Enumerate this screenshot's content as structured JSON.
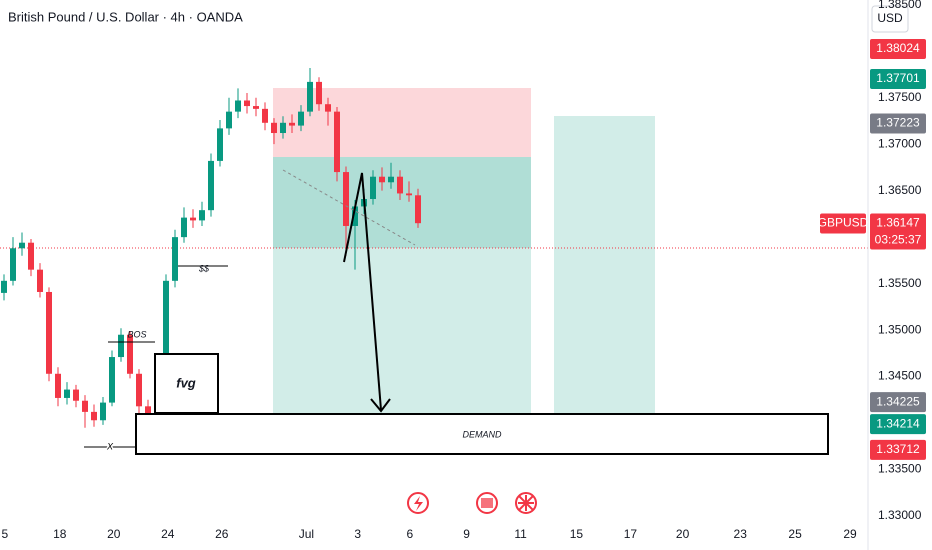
{
  "header": {
    "title": "British Pound / U.S. Dollar · 4h · OANDA",
    "currency": "USD"
  },
  "chart_data": {
    "type": "candlestick",
    "up_color": "#089981",
    "down_color": "#f23645",
    "open": [
      1.354,
      1.3553,
      1.3588,
      1.3594,
      1.3565,
      1.3541,
      1.3453,
      1.3427,
      1.3436,
      1.3424,
      1.3412,
      1.3403,
      1.3422,
      1.3471,
      1.3495,
      1.3453,
      1.3418,
      1.3398,
      1.3453,
      1.3553,
      1.36,
      1.3621,
      1.3618,
      1.3629,
      1.3682,
      1.3717,
      1.3735,
      1.3747,
      1.3741,
      1.3738,
      1.3723,
      1.3712,
      1.3723,
      1.372,
      1.3735,
      1.3767,
      1.3743,
      1.3735,
      1.367,
      1.3612,
      1.3633,
      1.3641,
      1.3665,
      1.3659,
      1.3665,
      1.3647,
      1.3645
    ],
    "high": [
      1.356,
      1.36,
      1.3605,
      1.3598,
      1.3572,
      1.3546,
      1.346,
      1.3444,
      1.3441,
      1.343,
      1.342,
      1.3428,
      1.3478,
      1.3502,
      1.3499,
      1.3458,
      1.3425,
      1.346,
      1.356,
      1.3608,
      1.3632,
      1.363,
      1.3638,
      1.369,
      1.3726,
      1.375,
      1.376,
      1.3755,
      1.375,
      1.3745,
      1.3728,
      1.373,
      1.3732,
      1.3742,
      1.3782,
      1.3772,
      1.375,
      1.374,
      1.3676,
      1.364,
      1.3652,
      1.3672,
      1.3675,
      1.368,
      1.3672,
      1.366,
      1.3652
    ],
    "low": [
      1.3532,
      1.3548,
      1.358,
      1.3558,
      1.3535,
      1.3445,
      1.3418,
      1.342,
      1.3417,
      1.3395,
      1.3396,
      1.3398,
      1.3418,
      1.3466,
      1.3448,
      1.341,
      1.3382,
      1.3392,
      1.3448,
      1.3546,
      1.3594,
      1.361,
      1.3612,
      1.3622,
      1.3676,
      1.371,
      1.3728,
      1.3733,
      1.373,
      1.3715,
      1.37,
      1.3706,
      1.3712,
      1.3714,
      1.373,
      1.3736,
      1.372,
      1.366,
      1.358,
      1.3565,
      1.3625,
      1.3635,
      1.365,
      1.3652,
      1.364,
      1.3638,
      1.361
    ],
    "close": [
      1.3553,
      1.3588,
      1.3594,
      1.3565,
      1.3541,
      1.3453,
      1.3427,
      1.3436,
      1.3424,
      1.3412,
      1.3403,
      1.3422,
      1.3471,
      1.3495,
      1.3453,
      1.3418,
      1.3398,
      1.3453,
      1.3553,
      1.36,
      1.3621,
      1.3618,
      1.3629,
      1.3682,
      1.3717,
      1.3735,
      1.3747,
      1.3741,
      1.3738,
      1.3723,
      1.3712,
      1.3723,
      1.372,
      1.3735,
      1.3767,
      1.3743,
      1.3735,
      1.367,
      1.3612,
      1.3633,
      1.3641,
      1.3665,
      1.3659,
      1.3665,
      1.3647,
      1.3645,
      1.3615
    ],
    "xlim": [
      0,
      96
    ],
    "xticks": [
      {
        "value": 0.1,
        "label": "5"
      },
      {
        "value": 6.2,
        "label": "18"
      },
      {
        "value": 12.2,
        "label": "20"
      },
      {
        "value": 18.2,
        "label": "24"
      },
      {
        "value": 24.2,
        "label": "26"
      },
      {
        "value": 33.6,
        "label": "Jul"
      },
      {
        "value": 39.3,
        "label": "3"
      },
      {
        "value": 45.1,
        "label": "6"
      },
      {
        "value": 51.4,
        "label": "9"
      },
      {
        "value": 57.4,
        "label": "11"
      },
      {
        "value": 63.6,
        "label": "15"
      },
      {
        "value": 69.6,
        "label": "17"
      },
      {
        "value": 75.4,
        "label": "20"
      },
      {
        "value": 81.8,
        "label": "23"
      },
      {
        "value": 87.9,
        "label": "25"
      },
      {
        "value": 94,
        "label": "29"
      }
    ],
    "ylim": [
      1.33,
      1.38551
    ],
    "yticks": [
      {
        "value": 1.385,
        "label": "1.38500"
      },
      {
        "value": 1.375,
        "label": "1.37500"
      },
      {
        "value": 1.37,
        "label": "1.37000"
      },
      {
        "value": 1.365,
        "label": "1.36500"
      },
      {
        "value": 1.355,
        "label": "1.35500"
      },
      {
        "value": 1.35,
        "label": "1.35000"
      },
      {
        "value": 1.345,
        "label": "1.34500"
      },
      {
        "value": 1.335,
        "label": "1.33500"
      },
      {
        "value": 1.33,
        "label": "1.33000"
      }
    ],
    "price_labels": [
      {
        "value": 1.38024,
        "color": "#f23645"
      },
      {
        "value": 1.37701,
        "color": "#089981"
      },
      {
        "value": 1.37223,
        "color": "#787b86"
      },
      {
        "value": 1.34225,
        "color": "#787b86"
      },
      {
        "value": 1.34214,
        "color": "#089981"
      },
      {
        "value": 1.33712,
        "color": "#f23645"
      }
    ],
    "last_price": {
      "symbol": "GBPUSD",
      "value": 1.36147,
      "countdown": "03:25:37",
      "color": "#f23645"
    },
    "annotations": {
      "bos": "BOS",
      "liquidity": "$$",
      "fvg": "fvg",
      "sweep": "X",
      "demand": "DEMAND"
    }
  }
}
